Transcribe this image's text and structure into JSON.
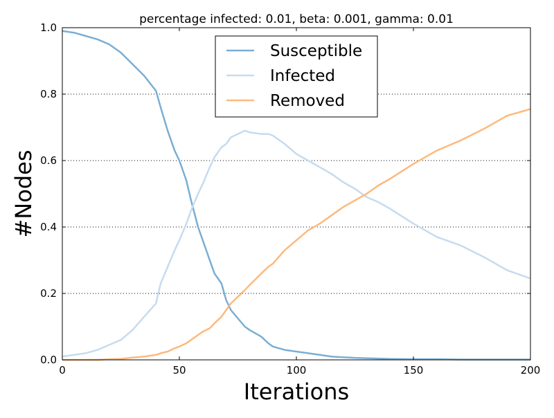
{
  "chart_data": {
    "type": "line",
    "title": "percentage infected: 0.01, beta: 0.001, gamma: 0.01",
    "xlabel": "Iterations",
    "ylabel": "#Nodes",
    "xlim": [
      0,
      200
    ],
    "ylim": [
      0.0,
      1.0
    ],
    "xticks": [
      0,
      50,
      100,
      150,
      200
    ],
    "xtick_labels": [
      "0",
      "50",
      "100",
      "150",
      "200"
    ],
    "yticks": [
      0.0,
      0.2,
      0.4,
      0.6,
      0.8,
      1.0
    ],
    "ytick_labels": [
      "0.0",
      "0.2",
      "0.4",
      "0.6",
      "0.8",
      "1.0"
    ],
    "grid": "horizontal dotted",
    "legend_position": "top-center",
    "x": [
      0,
      5,
      10,
      15,
      20,
      25,
      30,
      35,
      40,
      42,
      45,
      48,
      50,
      53,
      55,
      58,
      60,
      63,
      65,
      68,
      70,
      72,
      75,
      78,
      80,
      85,
      88,
      90,
      95,
      100,
      105,
      110,
      115,
      120,
      125,
      130,
      135,
      140,
      150,
      160,
      170,
      180,
      190,
      200
    ],
    "series": [
      {
        "name": "Susceptible",
        "color": "#7aaed3",
        "values": [
          0.99,
          0.985,
          0.975,
          0.965,
          0.95,
          0.925,
          0.89,
          0.855,
          0.81,
          0.76,
          0.69,
          0.63,
          0.6,
          0.54,
          0.48,
          0.4,
          0.36,
          0.3,
          0.26,
          0.23,
          0.18,
          0.15,
          0.125,
          0.1,
          0.09,
          0.07,
          0.05,
          0.04,
          0.03,
          0.025,
          0.02,
          0.015,
          0.01,
          0.008,
          0.006,
          0.005,
          0.004,
          0.003,
          0.002,
          0.002,
          0.001,
          0.001,
          0.001,
          0.001
        ]
      },
      {
        "name": "Infected",
        "color": "#c6dbef",
        "values": [
          0.01,
          0.015,
          0.02,
          0.03,
          0.045,
          0.06,
          0.09,
          0.13,
          0.17,
          0.23,
          0.28,
          0.33,
          0.36,
          0.41,
          0.45,
          0.5,
          0.53,
          0.58,
          0.61,
          0.64,
          0.65,
          0.67,
          0.68,
          0.69,
          0.685,
          0.68,
          0.68,
          0.675,
          0.65,
          0.62,
          0.6,
          0.58,
          0.56,
          0.535,
          0.515,
          0.49,
          0.475,
          0.455,
          0.41,
          0.37,
          0.345,
          0.31,
          0.27,
          0.245
        ]
      },
      {
        "name": "Removed",
        "color": "#fdb97c",
        "values": [
          0.0,
          0.0,
          0.0,
          0.0,
          0.002,
          0.003,
          0.007,
          0.01,
          0.015,
          0.02,
          0.025,
          0.035,
          0.04,
          0.05,
          0.06,
          0.075,
          0.085,
          0.095,
          0.11,
          0.13,
          0.15,
          0.17,
          0.19,
          0.21,
          0.225,
          0.26,
          0.28,
          0.29,
          0.33,
          0.36,
          0.39,
          0.41,
          0.435,
          0.46,
          0.48,
          0.5,
          0.525,
          0.545,
          0.59,
          0.63,
          0.66,
          0.695,
          0.735,
          0.755
        ]
      }
    ]
  }
}
